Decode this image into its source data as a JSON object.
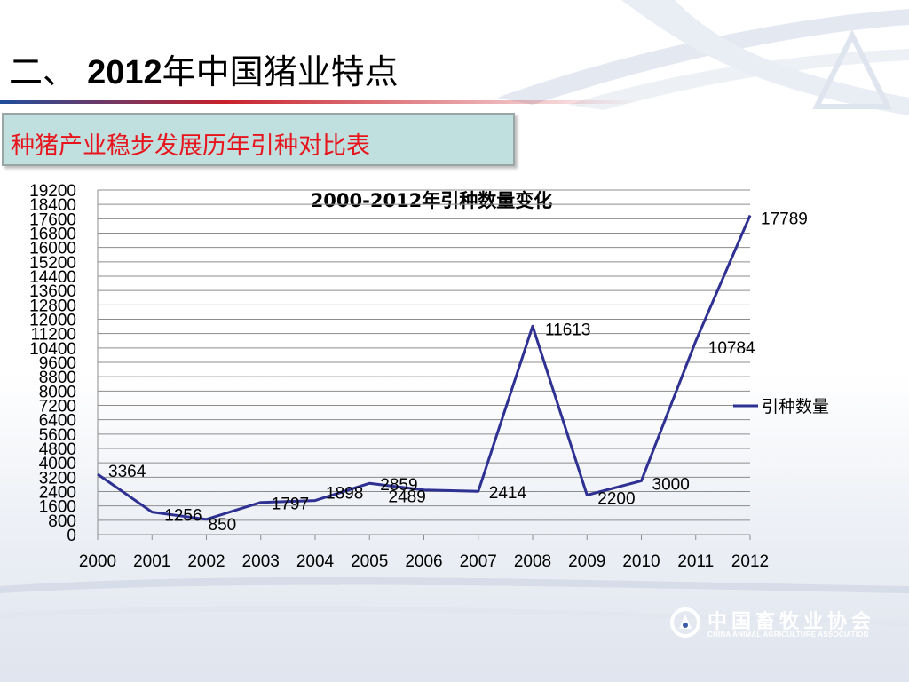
{
  "slide": {
    "title_prefix": "二、 ",
    "title_year": "2012",
    "title_suffix": "年中国猪业特点",
    "subtitle": "种猪产业稳步发展历年引种对比表",
    "logo_cn": "中国畜牧业协会",
    "logo_en": "CHINA ANIMAL AGRICULTURE ASSOCIATION"
  },
  "colors": {
    "line": "#2e3192",
    "subtitle_text": "#e8141c",
    "subtitle_bg": "#bfe0df",
    "accent_red": "#c8202a",
    "accent_blue": "#1f4e9c"
  },
  "chart_data": {
    "type": "line",
    "title": "2000-2012年引种数量变化",
    "xlabel": "",
    "ylabel": "",
    "categories": [
      "2000",
      "2001",
      "2002",
      "2003",
      "2004",
      "2005",
      "2006",
      "2007",
      "2008",
      "2009",
      "2010",
      "2011",
      "2012"
    ],
    "ylim": [
      0,
      19200
    ],
    "ytick_step": 800,
    "grid": true,
    "legend_position": "right",
    "series": [
      {
        "name": "引种数量",
        "values": [
          3364,
          1256,
          850,
          1797,
          1898,
          2859,
          2489,
          2414,
          11613,
          2200,
          3000,
          10784,
          17789
        ]
      }
    ]
  }
}
